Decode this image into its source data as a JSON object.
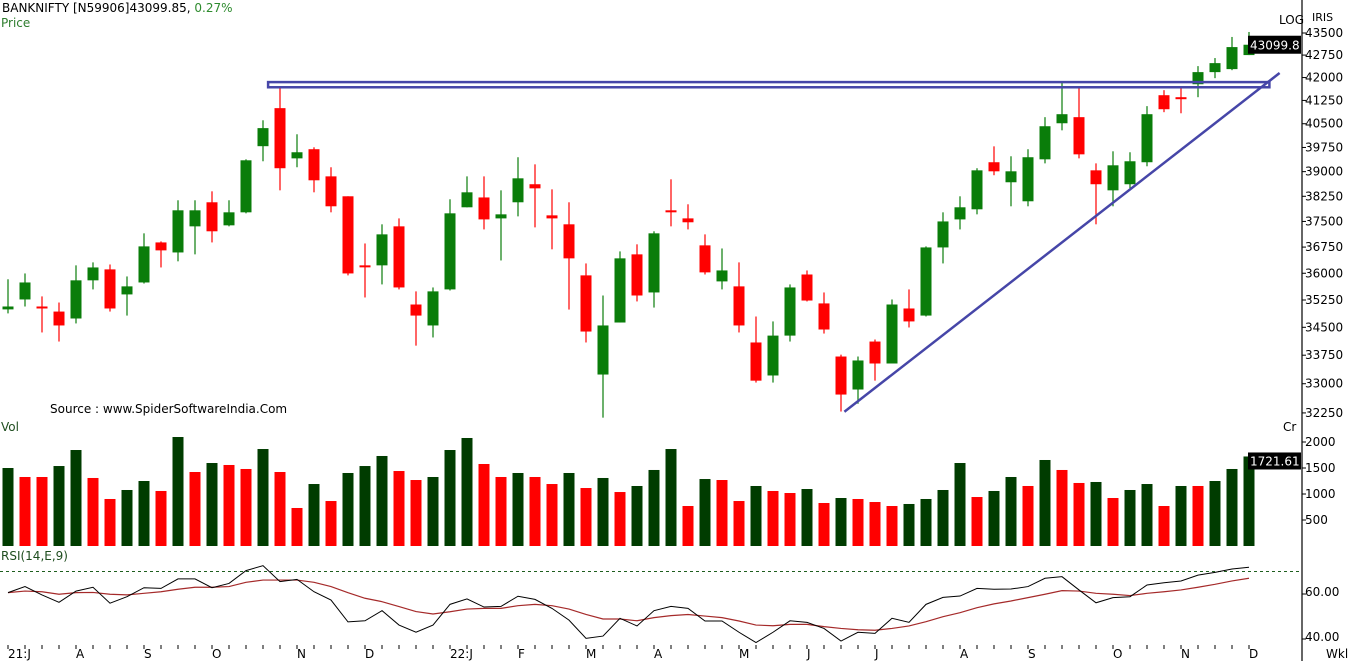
{
  "header": {
    "symbol": "BANKNIFTY [N59906]43099.85,",
    "change": "0.27%",
    "price_label": "Price",
    "volume_label": "Vol",
    "rsi_label": "RSI(14,E,9)",
    "source": "Source : www.SpiderSoftwareIndia.Com",
    "scale_mode": "LOG",
    "brand": "IRIS",
    "volume_unit": "Cr",
    "period": "Wkl"
  },
  "colors": {
    "up": "#0a7d0a",
    "down": "#ff0000",
    "volume_up": "#003c00",
    "volume_down": "#ff0000",
    "trendline": "#4646a8",
    "rsi": "#000000",
    "rsi_signal": "#a52a2a",
    "rsi_level": "#1e5e1e"
  },
  "chart_data": [
    {
      "type": "candlestick",
      "title": "BANKNIFTY weekly",
      "scale": "log",
      "last_value": "43099.8",
      "ylim": [
        32000,
        43700
      ],
      "yticks": [
        "43500",
        "42750",
        "42000",
        "41250",
        "40500",
        "39750",
        "39000",
        "38250",
        "37500",
        "36750",
        "36000",
        "35250",
        "34500",
        "33750",
        "33000",
        "32250"
      ],
      "ohlc": [
        [
          34990,
          35830,
          34880,
          35070
        ],
        [
          35265,
          35995,
          35070,
          35740
        ],
        [
          35070,
          35350,
          34360,
          35015
        ],
        [
          34930,
          35180,
          34115,
          34550
        ],
        [
          34740,
          36225,
          34605,
          35800
        ],
        [
          35800,
          36310,
          35545,
          36165
        ],
        [
          36110,
          36250,
          34930,
          35015
        ],
        [
          35405,
          35910,
          34820,
          35630
        ],
        [
          35740,
          37150,
          35710,
          36770
        ],
        [
          36885,
          36915,
          36165,
          36655
        ],
        [
          36595,
          38130,
          36340,
          37830
        ],
        [
          37355,
          38130,
          36540,
          37830
        ],
        [
          38070,
          38400,
          36885,
          37210
        ],
        [
          37385,
          38130,
          37355,
          37770
        ],
        [
          37770,
          39380,
          37740,
          39350
        ],
        [
          39790,
          40610,
          39320,
          40360
        ],
        [
          41000,
          41715,
          38430,
          39105
        ],
        [
          39410,
          40165,
          39135,
          39600
        ],
        [
          39695,
          39755,
          38370,
          38735
        ],
        [
          38855,
          39135,
          37770,
          37950
        ],
        [
          38250,
          38250,
          35940,
          35995
        ],
        [
          36225,
          36855,
          35320,
          36195
        ],
        [
          36225,
          37415,
          35685,
          37120
        ],
        [
          37355,
          37590,
          35545,
          35600
        ],
        [
          35125,
          35490,
          34005,
          34820
        ],
        [
          34550,
          35600,
          34225,
          35490
        ],
        [
          35545,
          38160,
          35515,
          37740
        ],
        [
          37920,
          38855,
          37920,
          38370
        ],
        [
          38215,
          38855,
          37265,
          37560
        ],
        [
          37590,
          38430,
          36365,
          37710
        ],
        [
          38070,
          39445,
          37650,
          38795
        ],
        [
          38615,
          39225,
          37325,
          38490
        ],
        [
          37680,
          38460,
          36685,
          37590
        ],
        [
          37415,
          38070,
          34985,
          36425
        ],
        [
          35940,
          36280,
          34090,
          34385
        ],
        [
          33240,
          35375,
          32130,
          34550
        ],
        [
          34630,
          36625,
          34630,
          36425
        ],
        [
          36540,
          36830,
          35210,
          35375
        ],
        [
          35460,
          37210,
          35040,
          37150
        ],
        [
          37830,
          38765,
          37355,
          37770
        ],
        [
          37590,
          38010,
          37265,
          37475
        ],
        [
          36800,
          37120,
          35965,
          36025
        ],
        [
          35770,
          36710,
          35545,
          36080
        ],
        [
          35630,
          36310,
          34360,
          34550
        ],
        [
          34090,
          34795,
          33030,
          33080
        ],
        [
          33215,
          34660,
          33030,
          34275
        ],
        [
          34275,
          35685,
          34115,
          35600
        ],
        [
          35965,
          36080,
          35210,
          35235
        ],
        [
          35155,
          35460,
          34330,
          34440
        ],
        [
          33715,
          33765,
          32285,
          32720
        ],
        [
          32850,
          33715,
          32485,
          33610
        ],
        [
          34115,
          34170,
          33080,
          33530
        ],
        [
          33530,
          35265,
          33530,
          35125
        ],
        [
          35015,
          35545,
          34495,
          34660
        ],
        [
          34820,
          36770,
          34795,
          36740
        ],
        [
          36740,
          37770,
          36280,
          37500
        ],
        [
          37560,
          38250,
          37265,
          37920
        ],
        [
          37860,
          39105,
          37710,
          39040
        ],
        [
          39290,
          39785,
          38890,
          39010
        ],
        [
          38675,
          39475,
          37950,
          39010
        ],
        [
          38100,
          39695,
          37950,
          39445
        ],
        [
          39380,
          40710,
          39255,
          40420
        ],
        [
          40515,
          41850,
          40290,
          40805
        ],
        [
          40710,
          41650,
          39410,
          39535
        ],
        [
          39040,
          39255,
          37415,
          38615
        ],
        [
          38430,
          39630,
          37950,
          39195
        ],
        [
          38615,
          39600,
          38490,
          39320
        ],
        [
          39290,
          41065,
          39165,
          40805
        ],
        [
          41420,
          41585,
          40870,
          40965
        ],
        [
          41355,
          41650,
          40835,
          41320
        ],
        [
          41780,
          42380,
          41355,
          42180
        ],
        [
          42180,
          42650,
          41980,
          42480
        ],
        [
          42280,
          43365,
          42245,
          43020
        ],
        [
          42750,
          43535,
          42750,
          43099.85
        ]
      ],
      "annotations": {
        "resistance_zone": {
          "from_index": 15.3,
          "to_index": 74.2,
          "price_low": 41680,
          "price_high": 41850
        },
        "rising_trendline": {
          "from_index": 49.2,
          "from_price": 32280,
          "to_index": 74.8,
          "to_price": 42150
        }
      }
    },
    {
      "type": "bar",
      "title": "Volume",
      "unit": "Cr",
      "last_value": "1721.61",
      "ylim": [
        0,
        2200
      ],
      "yticks": [
        "2000",
        "1500",
        "1000",
        "500"
      ],
      "values": [
        1500,
        1327,
        1327,
        1538,
        1846,
        1308,
        904,
        1077,
        1250,
        1058,
        2096,
        1423,
        1596,
        1558,
        1481,
        1865,
        1423,
        731,
        1192,
        865,
        1404,
        1538,
        1731,
        1442,
        1269,
        1327,
        1846,
        2077,
        1577,
        1327,
        1404,
        1327,
        1192,
        1404,
        1115,
        1308,
        1038,
        1154,
        1462,
        1865,
        769,
        1288,
        1269,
        865,
        1154,
        1058,
        1019,
        1096,
        827,
        923,
        904,
        846,
        769,
        808,
        904,
        1077,
        1596,
        942,
        1058,
        1327,
        1154,
        1654,
        1462,
        1212,
        1231,
        923,
        1077,
        1192,
        769,
        1154,
        1154,
        1250,
        1481,
        1721.61
      ],
      "up": [
        1,
        0,
        0,
        1,
        1,
        0,
        0,
        1,
        1,
        0,
        1,
        0,
        1,
        0,
        0,
        1,
        0,
        0,
        1,
        0,
        1,
        1,
        1,
        0,
        0,
        1,
        1,
        1,
        0,
        0,
        1,
        0,
        0,
        1,
        0,
        1,
        0,
        1,
        1,
        1,
        0,
        1,
        0,
        0,
        1,
        0,
        0,
        1,
        0,
        1,
        0,
        0,
        0,
        1,
        1,
        1,
        1,
        0,
        1,
        1,
        0,
        1,
        0,
        0,
        1,
        0,
        1,
        1,
        0,
        1,
        0,
        1,
        1,
        1
      ]
    },
    {
      "type": "line",
      "title": "RSI(14,E,9)",
      "ylim": [
        36,
        75
      ],
      "yticks": [
        "60.00",
        "40.00"
      ],
      "level": 70,
      "series": [
        {
          "name": "RSI",
          "values": [
            60.6,
            63.3,
            59.6,
            56.3,
            61.3,
            63.0,
            55.9,
            58.8,
            62.8,
            62.5,
            66.7,
            66.7,
            62.8,
            64.7,
            70.4,
            72.6,
            65.5,
            66.5,
            61.0,
            57.3,
            47.6,
            48.1,
            52.6,
            46.2,
            43.0,
            46.2,
            55.4,
            57.8,
            54.2,
            54.5,
            59.0,
            57.6,
            53.6,
            48.4,
            40.3,
            41.3,
            49.2,
            45.8,
            52.6,
            54.5,
            53.6,
            48.0,
            48.0,
            43.0,
            38.4,
            43.0,
            48.1,
            47.4,
            44.7,
            39.1,
            43.0,
            42.5,
            49.2,
            47.4,
            55.4,
            58.5,
            59.1,
            62.5,
            62.1,
            62.2,
            63.3,
            67.0,
            67.7,
            61.8,
            56.1,
            58.4,
            58.8,
            64.0,
            65.0,
            65.8,
            68.4,
            69.6,
            71.1,
            71.9
          ]
        },
        {
          "name": "Signal",
          "values": [
            60.6,
            61.3,
            61.0,
            59.9,
            60.6,
            60.7,
            59.9,
            59.6,
            60.3,
            61.0,
            62.1,
            63.0,
            63.0,
            63.3,
            65.2,
            66.2,
            66.2,
            66.2,
            65.2,
            63.3,
            60.6,
            58.1,
            56.6,
            54.4,
            52.2,
            51.1,
            52.1,
            53.3,
            53.6,
            53.6,
            54.8,
            55.4,
            54.8,
            53.3,
            50.9,
            48.9,
            48.9,
            48.1,
            49.5,
            50.4,
            50.9,
            50.2,
            49.5,
            48.0,
            46.2,
            45.9,
            46.5,
            46.5,
            45.5,
            44.7,
            44.1,
            43.9,
            44.7,
            45.8,
            47.7,
            49.9,
            51.7,
            53.9,
            55.6,
            56.9,
            58.4,
            59.9,
            61.5,
            61.3,
            60.3,
            59.9,
            59.3,
            60.3,
            61.0,
            61.8,
            63.0,
            64.3,
            65.8,
            67.0
          ]
        }
      ]
    }
  ],
  "x_axis": {
    "labels": [
      {
        "index": 0,
        "text": "21:J"
      },
      {
        "index": 4,
        "text": "A"
      },
      {
        "index": 8,
        "text": "S"
      },
      {
        "index": 12,
        "text": "O"
      },
      {
        "index": 17,
        "text": "N"
      },
      {
        "index": 21,
        "text": "D"
      },
      {
        "index": 26,
        "text": "22:J"
      },
      {
        "index": 30,
        "text": "F"
      },
      {
        "index": 34,
        "text": "M"
      },
      {
        "index": 38,
        "text": "A"
      },
      {
        "index": 43,
        "text": "M"
      },
      {
        "index": 47,
        "text": "J"
      },
      {
        "index": 51,
        "text": "J"
      },
      {
        "index": 56,
        "text": "A"
      },
      {
        "index": 60,
        "text": "S"
      },
      {
        "index": 65,
        "text": "O"
      },
      {
        "index": 69,
        "text": "N"
      },
      {
        "index": 73,
        "text": "D"
      }
    ]
  }
}
